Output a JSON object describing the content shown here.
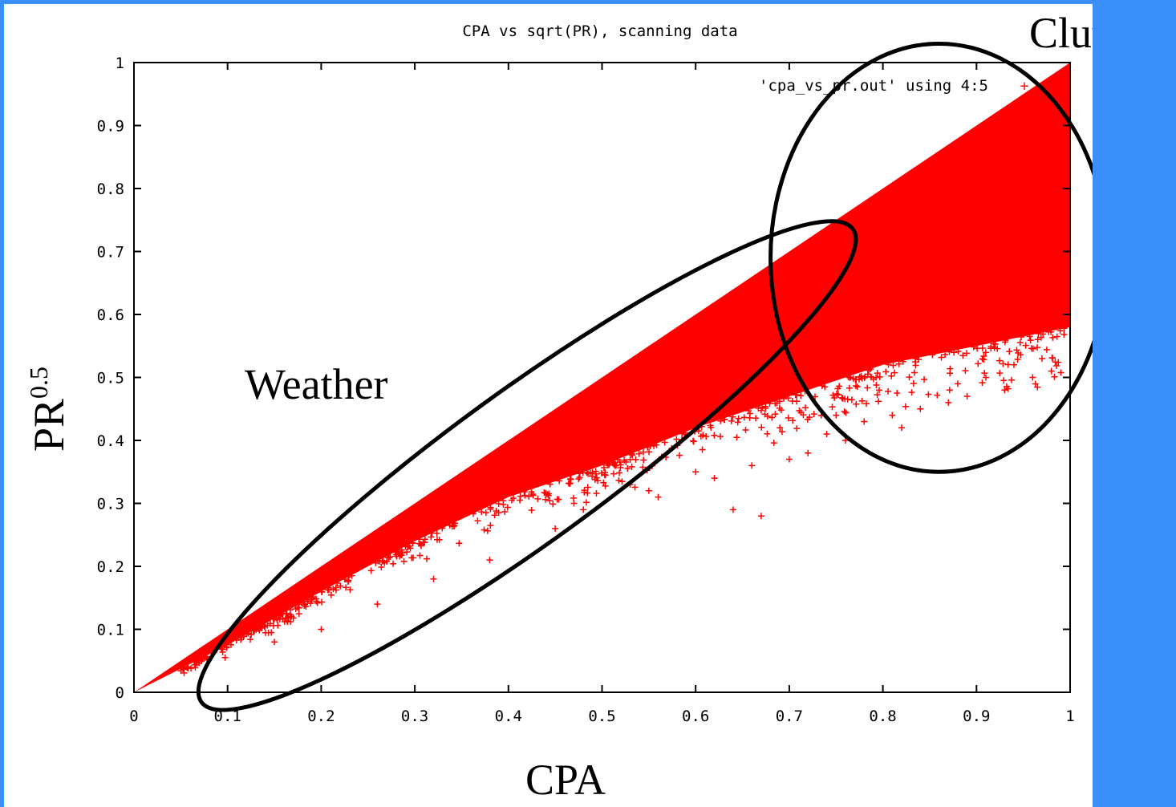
{
  "slide": {
    "background_color": "#3b8ffb",
    "panel_color": "#ffffff"
  },
  "chart_data": {
    "type": "scatter",
    "title": "CPA vs sqrt(PR), scanning data",
    "xlabel": "CPA",
    "ylabel_base": "PR",
    "ylabel_superscript": "0.5",
    "xlim": [
      0,
      1
    ],
    "ylim": [
      0,
      1
    ],
    "x_ticks": [
      "0",
      "0.1",
      "0.2",
      "0.3",
      "0.4",
      "0.5",
      "0.6",
      "0.7",
      "0.8",
      "0.9",
      "1"
    ],
    "y_ticks": [
      "0",
      "0.1",
      "0.2",
      "0.3",
      "0.4",
      "0.5",
      "0.6",
      "0.7",
      "0.8",
      "0.9",
      "1"
    ],
    "grid": false,
    "legend_position": "top-right",
    "marker": "+",
    "series": [
      {
        "name": "'cpa_vs_pr.out' using 4:5",
        "color": "#ff0000",
        "dense_region": {
          "upper_edge": [
            [
              0,
              0
            ],
            [
              1,
              1
            ]
          ],
          "lower_edge": [
            [
              0,
              0
            ],
            [
              0.1,
              0.075
            ],
            [
              0.2,
              0.16
            ],
            [
              0.3,
              0.24
            ],
            [
              0.4,
              0.31
            ],
            [
              0.5,
              0.36
            ],
            [
              0.6,
              0.42
            ],
            [
              0.7,
              0.47
            ],
            [
              0.8,
              0.52
            ],
            [
              0.9,
              0.55
            ],
            [
              1,
              0.58
            ]
          ]
        },
        "outliers": [
          [
            0.64,
            0.29
          ],
          [
            0.67,
            0.28
          ],
          [
            0.56,
            0.31
          ],
          [
            0.48,
            0.29
          ],
          [
            0.47,
            0.3
          ],
          [
            0.53,
            0.33
          ],
          [
            0.6,
            0.35
          ],
          [
            0.66,
            0.36
          ],
          [
            0.72,
            0.38
          ],
          [
            0.74,
            0.41
          ],
          [
            0.78,
            0.43
          ],
          [
            0.81,
            0.44
          ],
          [
            0.84,
            0.45
          ],
          [
            0.87,
            0.46
          ],
          [
            0.93,
            0.48
          ],
          [
            0.96,
            0.5
          ],
          [
            0.98,
            0.51
          ],
          [
            0.89,
            0.47
          ],
          [
            0.82,
            0.42
          ],
          [
            0.76,
            0.4
          ],
          [
            0.7,
            0.37
          ],
          [
            0.62,
            0.34
          ],
          [
            0.55,
            0.32
          ],
          [
            0.45,
            0.26
          ],
          [
            0.38,
            0.21
          ],
          [
            0.32,
            0.18
          ],
          [
            0.26,
            0.14
          ],
          [
            0.2,
            0.1
          ],
          [
            0.15,
            0.08
          ],
          [
            0.88,
            0.49
          ],
          [
            0.91,
            0.5
          ],
          [
            0.94,
            0.52
          ],
          [
            0.97,
            0.53
          ],
          [
            0.75,
            0.44
          ],
          [
            0.69,
            0.42
          ]
        ]
      }
    ],
    "annotations": [
      {
        "label": "Weather",
        "cx": 0.42,
        "cy": 0.36,
        "rx_data": 0.43,
        "ry_data": 0.12,
        "rotation_deg": -36
      },
      {
        "label": "Clutter",
        "cx": 0.86,
        "cy": 0.69,
        "rx_data": 0.18,
        "ry_data": 0.34,
        "rotation_deg": 0
      }
    ]
  }
}
